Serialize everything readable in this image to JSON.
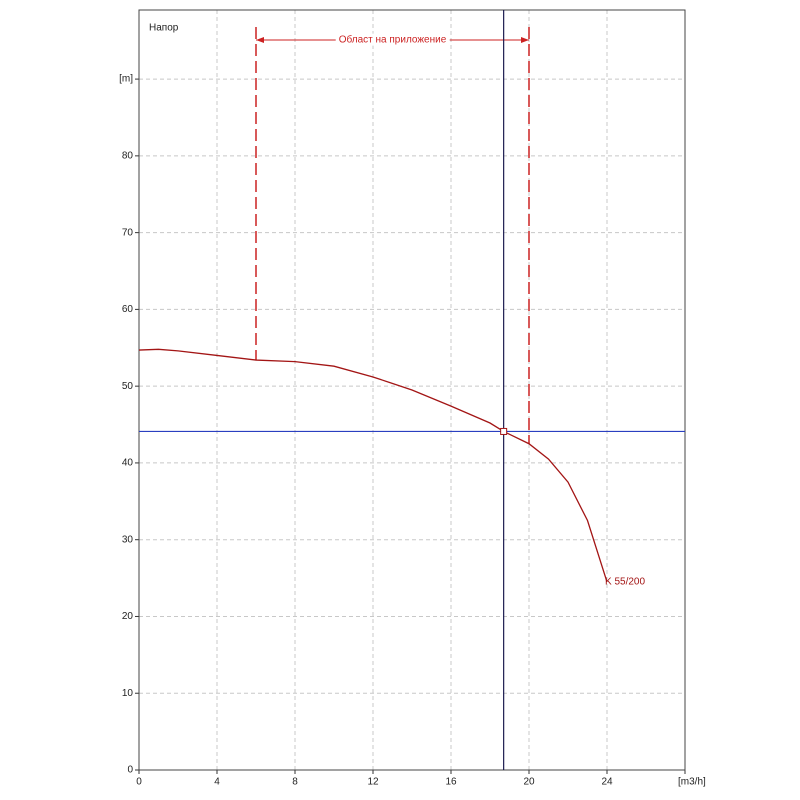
{
  "chart_data": {
    "type": "line",
    "title": "Напор",
    "xlim": [
      0,
      28
    ],
    "ylim": [
      0,
      99
    ],
    "xticks": [
      0,
      4,
      8,
      12,
      16,
      20,
      24,
      {
        "value": 28,
        "label": "[m3/h]"
      }
    ],
    "yticks": [
      0,
      10,
      20,
      30,
      40,
      50,
      60,
      70,
      80,
      {
        "value": 90,
        "label": "[m]"
      }
    ],
    "grid": true,
    "series": [
      {
        "name": "K 55/200",
        "color": "#a31515",
        "x": [
          0,
          1,
          2,
          4,
          6,
          8,
          10,
          12,
          14,
          16,
          18,
          18.7,
          20,
          21,
          22,
          23,
          24
        ],
        "values": [
          54.7,
          54.8,
          54.6,
          54.0,
          53.4,
          53.2,
          52.6,
          51.2,
          49.5,
          47.4,
          45.2,
          44.1,
          42.5,
          40.5,
          37.5,
          32.5,
          24.5
        ]
      }
    ],
    "operating_point": {
      "x": 18.7,
      "y": 44.1
    },
    "application_range": {
      "label": "Област на приложение",
      "x": [
        6,
        20
      ]
    }
  }
}
